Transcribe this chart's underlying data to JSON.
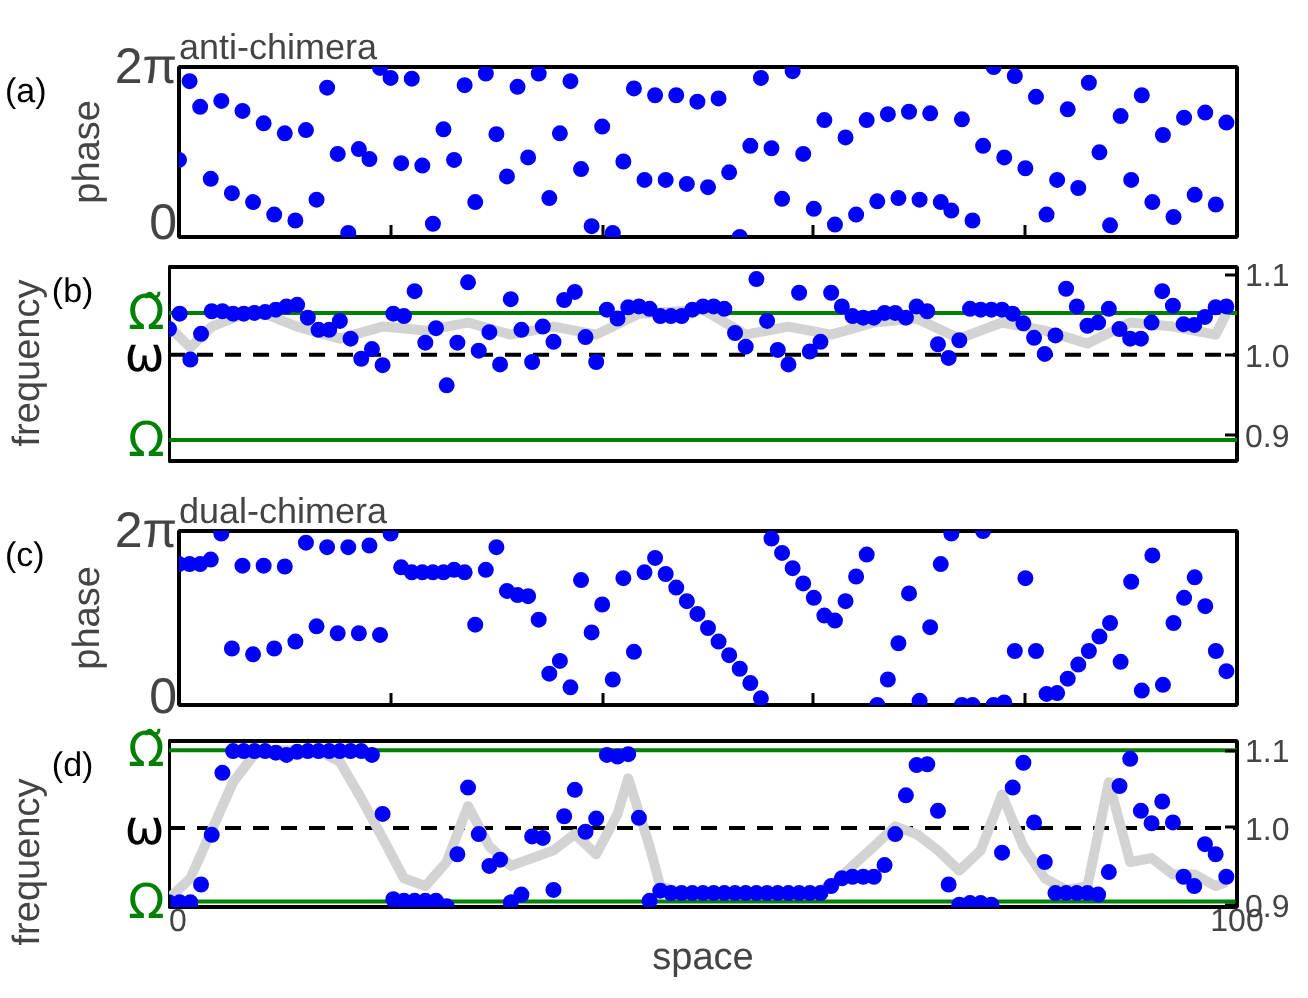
{
  "chart_data": [
    {
      "type": "scatter",
      "title": "anti-chimera",
      "ylabel": "phase",
      "annotations": [
        "(a)"
      ],
      "marker": "circle",
      "tick_labels": "y",
      "xlim": [
        0,
        100
      ],
      "xticks": [
        {
          "value": 0,
          "label": null
        },
        {
          "value": 20,
          "label": null
        },
        {
          "value": 40,
          "label": null
        },
        {
          "value": 60,
          "label": null
        },
        {
          "value": 80,
          "label": null
        },
        {
          "value": 100,
          "label": null
        }
      ],
      "ylim": [
        0,
        6.283
      ],
      "yticks": [
        0,
        {
          "value": 6.283,
          "label": "2π"
        }
      ],
      "x": [
        0,
        1,
        2,
        3,
        4,
        5,
        6,
        7,
        8,
        9,
        10,
        11,
        12,
        13,
        14,
        15,
        16,
        17,
        18,
        19,
        20,
        21,
        22,
        23,
        24,
        25,
        26,
        27,
        28,
        29,
        30,
        31,
        32,
        33,
        34,
        35,
        36,
        37,
        38,
        39,
        40,
        41,
        42,
        43,
        44,
        45,
        46,
        47,
        48,
        49,
        50,
        51,
        52,
        53,
        54,
        55,
        56,
        57,
        58,
        59,
        60,
        61,
        62,
        63,
        64,
        65,
        66,
        67,
        68,
        69,
        70,
        71,
        72,
        73,
        74,
        75,
        76,
        77,
        78,
        79,
        80,
        81,
        82,
        83,
        84,
        85,
        86,
        87,
        88,
        89,
        90,
        91,
        92,
        93,
        94,
        95,
        96,
        97,
        98,
        99
      ],
      "series": [
        {
          "color": "#0000ff",
          "values": [
            2.85,
            5.76,
            4.81,
            2.15,
            5.03,
            1.62,
            4.66,
            1.29,
            4.2,
            0.83,
            3.83,
            0.61,
            3.95,
            1.38,
            5.52,
            3.07,
            0.15,
            3.25,
            2.88,
            6.25,
            5.88,
            2.73,
            5.85,
            2.64,
            0.49,
            3.98,
            2.85,
            5.61,
            1.29,
            6.04,
            3.8,
            2.24,
            5.55,
            2.94,
            6.04,
            1.44,
            3.83,
            5.76,
            2.51,
            0.4,
            4.08,
            0.15,
            2.79,
            5.49,
            2.11,
            5.24,
            2.11,
            5.24,
            1.96,
            5.0,
            1.84,
            5.12,
            2.39,
            0,
            3.37,
            5.88,
            3.28,
            1.41,
            6.13,
            3.07,
            1.04,
            4.32,
            0.46,
            3.68,
            0.83,
            4.32,
            1.32,
            4.54,
            1.44,
            4.63,
            1.38,
            4.57,
            1.29,
            0.98,
            4.35,
            0.61,
            3.37,
            6.28,
            2.94,
            5.95,
            2.54,
            5.18,
            0.83,
            2.11,
            4.72,
            1.81,
            5.7,
            3.13,
            0.43,
            4.47,
            2.11,
            5.24,
            1.29,
            3.77,
            0.74,
            4.41,
            1.56,
            4.6,
            1.2,
            4.23
          ]
        }
      ]
    },
    {
      "type": "scatter",
      "ylabel": "frequency",
      "annotations": [
        "(b)"
      ],
      "marker": "circle",
      "tick_labels": "y",
      "xlim": [
        0,
        100
      ],
      "y2lim": [
        0.868,
        1.109
      ],
      "y2ticks": [
        {
          "value": 0.9,
          "label": "0.9"
        },
        {
          "value": 1.0,
          "label": "1.0"
        },
        {
          "value": 1.1,
          "label": "1.1"
        }
      ],
      "ref_lines": [
        {
          "axis": "y2",
          "value": 1.052,
          "label": "Ω̃",
          "color": "#008000",
          "line_style": "solid"
        },
        {
          "axis": "y2",
          "value": 1.0,
          "label": "ω",
          "color": "#000000",
          "line_style": "dashed"
        },
        {
          "axis": "y2",
          "value": 0.894,
          "label": "Ω",
          "color": "#008000",
          "line_style": "solid"
        }
      ],
      "x": [
        0,
        1,
        2,
        3,
        4,
        5,
        6,
        7,
        8,
        9,
        10,
        11,
        12,
        13,
        14,
        15,
        16,
        17,
        18,
        19,
        20,
        21,
        22,
        23,
        24,
        25,
        26,
        27,
        28,
        29,
        30,
        31,
        32,
        33,
        34,
        35,
        36,
        37,
        38,
        39,
        40,
        41,
        42,
        43,
        44,
        45,
        46,
        47,
        48,
        49,
        50,
        51,
        52,
        53,
        54,
        55,
        56,
        57,
        58,
        59,
        60,
        61,
        62,
        63,
        64,
        65,
        66,
        67,
        68,
        69,
        70,
        71,
        72,
        73,
        74,
        75,
        76,
        77,
        78,
        79,
        80,
        81,
        82,
        83,
        84,
        85,
        86,
        87,
        88,
        89,
        90,
        91,
        92,
        93,
        94,
        95,
        96,
        97,
        98,
        99
      ],
      "series": [
        {
          "type": "line",
          "axis": "y2",
          "marker": "none",
          "color": "#d3d3d3",
          "x": [
            0,
            2,
            4,
            8,
            12,
            16,
            20,
            24,
            28,
            32,
            36,
            40,
            44,
            50,
            54,
            58,
            62,
            66,
            70,
            74,
            78,
            82,
            86,
            90,
            94,
            98,
            99
          ],
          "values": [
            1.035,
            1.009,
            1.035,
            1.056,
            1.035,
            1.02,
            1.035,
            1.03,
            1.04,
            1.025,
            1.035,
            1.025,
            1.051,
            1.056,
            1.025,
            1.035,
            1.025,
            1.04,
            1.045,
            1.02,
            1.04,
            1.03,
            1.014,
            1.04,
            1.035,
            1.025,
            1.051
          ]
        },
        {
          "type": "scatter",
          "axis": "y2",
          "color": "#0000ff",
          "values": [
            1.032,
            1.051,
            0.994,
            1.026,
            1.054,
            1.054,
            1.051,
            1.051,
            1.052,
            1.053,
            1.056,
            1.06,
            1.062,
            1.046,
            1.031,
            1.031,
            1.042,
            1.02,
            0.995,
            1.007,
            0.987,
            1.051,
            1.048,
            1.079,
            1.015,
            1.033,
            0.962,
            1.015,
            1.09,
            1.005,
            1.028,
            0.988,
            1.069,
            1.031,
            0.991,
            1.035,
            1.016,
            1.068,
            1.078,
            1.022,
            0.991,
            1.056,
            1.045,
            1.059,
            1.06,
            1.057,
            1.048,
            1.048,
            1.048,
            1.056,
            1.06,
            1.06,
            1.057,
            1.027,
            1.01,
            1.094,
            1.042,
            1.006,
            0.988,
            1.077,
            1.004,
            1.016,
            1.077,
            1.06,
            1.048,
            1.046,
            1.046,
            1.052,
            1.052,
            1.046,
            1.06,
            1.054,
            1.013,
            0.996,
            1.018,
            1.057,
            1.056,
            1.056,
            1.056,
            1.051,
            1.039,
            1.021,
            1.001,
            1.024,
            1.082,
            1.06,
            1.036,
            1.04,
            1.057,
            1.032,
            1.02,
            1.02,
            1.04,
            1.079,
            1.061,
            1.038,
            1.037,
            1.047,
            1.059,
            1.06
          ]
        }
      ]
    },
    {
      "type": "scatter",
      "title": "dual-chimera",
      "ylabel": "phase",
      "annotations": [
        "(c)"
      ],
      "marker": "circle",
      "tick_labels": "y",
      "xlim": [
        0,
        100
      ],
      "xticks": [
        {
          "value": 0,
          "label": null
        },
        {
          "value": 20,
          "label": null
        },
        {
          "value": 40,
          "label": null
        },
        {
          "value": 60,
          "label": null
        },
        {
          "value": 80,
          "label": null
        },
        {
          "value": 100,
          "label": null
        }
      ],
      "ylim": [
        0,
        6.283
      ],
      "yticks": [
        0,
        {
          "value": 6.283,
          "label": "2π"
        }
      ],
      "x": [
        0,
        1,
        2,
        3,
        4,
        5,
        6,
        7,
        8,
        9,
        10,
        11,
        12,
        13,
        14,
        15,
        16,
        17,
        18,
        19,
        20,
        21,
        22,
        23,
        24,
        25,
        26,
        27,
        28,
        29,
        30,
        31,
        32,
        33,
        34,
        35,
        36,
        37,
        38,
        39,
        40,
        41,
        42,
        43,
        44,
        45,
        46,
        47,
        48,
        49,
        50,
        51,
        52,
        53,
        54,
        55,
        56,
        57,
        58,
        59,
        60,
        61,
        62,
        63,
        64,
        65,
        66,
        67,
        68,
        69,
        70,
        71,
        72,
        73,
        74,
        75,
        76,
        77,
        78,
        79,
        80,
        81,
        82,
        83,
        84,
        85,
        86,
        87,
        88,
        89,
        90,
        91,
        92,
        93,
        94,
        95,
        96,
        97,
        98,
        99
      ],
      "series": [
        {
          "color": "#0000ff",
          "values": [
            5.09,
            5.09,
            5.09,
            5.25,
            6.19,
            2.04,
            5.03,
            1.83,
            5.03,
            2.04,
            5.0,
            2.29,
            5.86,
            2.84,
            5.7,
            2.59,
            5.7,
            2.59,
            5.76,
            2.53,
            6.19,
            4.97,
            4.79,
            4.79,
            4.79,
            4.79,
            4.88,
            4.79,
            2.9,
            4.88,
            5.7,
            4.12,
            3.97,
            3.93,
            3.08,
            1.13,
            1.59,
            0.64,
            4.51,
            2.62,
            3.63,
            0.92,
            4.58,
            1.92,
            4.79,
            5.31,
            4.73,
            4.24,
            3.75,
            3.29,
            2.78,
            2.29,
            1.8,
            1.31,
            0.79,
            0.24,
            6.01,
            5.49,
            4.94,
            4.39,
            3.87,
            3.23,
            3.05,
            3.75,
            4.64,
            5.43,
            0,
            0.92,
            2.23,
            4.03,
            0.15,
            2.81,
            5.09,
            6.19,
            0,
            0,
            6.28,
            0,
            0.09,
            1.95,
            4.58,
            1.95,
            0.4,
            0.43,
            0.95,
            1.46,
            1.95,
            2.47,
            2.96,
            1.56,
            4.45,
            0.52,
            5.4,
            0.73,
            2.96,
            3.87,
            4.61,
            3.57,
            1.95,
            1.22
          ]
        }
      ]
    },
    {
      "type": "scatter",
      "ylabel": "frequency",
      "xlabel": "space",
      "annotations": [
        "(d)"
      ],
      "marker": "circle",
      "xlim": [
        0,
        100
      ],
      "xticks": [
        0,
        100
      ],
      "y2lim": [
        0.898,
        1.112
      ],
      "y2ticks": [
        {
          "value": 0.9,
          "label": "0.9"
        },
        {
          "value": 1.0,
          "label": "1.0"
        },
        {
          "value": 1.1,
          "label": "1.1"
        }
      ],
      "ref_lines": [
        {
          "axis": "y2",
          "value": 1.1,
          "label": "Ω̃",
          "color": "#008000",
          "line_style": "solid"
        },
        {
          "axis": "y2",
          "value": 1.0,
          "label": "ω",
          "color": "#000000",
          "line_style": "dashed"
        },
        {
          "axis": "y2",
          "value": 0.905,
          "label": "Ω",
          "color": "#008000",
          "line_style": "solid"
        }
      ],
      "x": [
        0,
        1,
        2,
        3,
        4,
        5,
        6,
        7,
        8,
        9,
        10,
        11,
        12,
        13,
        14,
        15,
        16,
        17,
        18,
        19,
        20,
        21,
        22,
        23,
        24,
        25,
        26,
        27,
        28,
        29,
        30,
        31,
        32,
        33,
        34,
        35,
        36,
        37,
        38,
        39,
        40,
        41,
        42,
        43,
        44,
        45,
        46,
        47,
        48,
        49,
        50,
        51,
        52,
        53,
        54,
        55,
        56,
        57,
        58,
        59,
        60,
        61,
        62,
        63,
        64,
        65,
        66,
        67,
        68,
        69,
        70,
        71,
        72,
        73,
        74,
        75,
        76,
        77,
        78,
        79,
        80,
        81,
        82,
        83,
        84,
        85,
        86,
        87,
        88,
        89,
        90,
        91,
        92,
        93,
        94,
        95,
        96,
        97,
        98,
        99
      ],
      "series": [
        {
          "type": "line",
          "axis": "y2",
          "marker": "none",
          "color": "#d3d3d3",
          "x": [
            0,
            2,
            4,
            6,
            8,
            10,
            12,
            14,
            16,
            18,
            20,
            22,
            24,
            26,
            28,
            30,
            32,
            34,
            36,
            38,
            40,
            42,
            43,
            45,
            46,
            48,
            52,
            56,
            60,
            62,
            64,
            66,
            68,
            70,
            72,
            74,
            76,
            78,
            80,
            82,
            84,
            86,
            88,
            90,
            92,
            94,
            96,
            98,
            99
          ],
          "values": [
            0.909,
            0.935,
            0.997,
            1.059,
            1.095,
            1.1,
            1.1,
            1.1,
            1.085,
            1.038,
            0.987,
            0.935,
            0.925,
            0.956,
            1.028,
            0.976,
            0.951,
            0.961,
            0.971,
            0.992,
            0.966,
            1.018,
            1.064,
            0.976,
            0.925,
            0.916,
            0.916,
            0.916,
            0.916,
            0.925,
            0.951,
            0.976,
            1.002,
            0.992,
            0.971,
            0.945,
            0.971,
            1.043,
            0.976,
            0.935,
            0.92,
            0.925,
            1.059,
            0.956,
            0.961,
            0.94,
            0.94,
            0.925,
            0.93
          ]
        },
        {
          "type": "scatter",
          "axis": "y2",
          "color": "#0000ff",
          "values": [
            0.904,
            0.904,
            0.904,
            0.927,
            0.991,
            1.071,
            1.099,
            1.099,
            1.099,
            1.099,
            1.097,
            1.094,
            1.098,
            1.099,
            1.099,
            1.099,
            1.099,
            1.099,
            1.099,
            1.094,
            1.018,
            0.908,
            0.906,
            0.906,
            0.906,
            0.906,
            0.899,
            0.966,
            1.052,
            0.992,
            0.951,
            0.959,
            0.904,
            0.914,
            0.989,
            0.987,
            0.92,
            1.015,
            1.049,
            0.995,
            1.012,
            1.094,
            1.092,
            1.095,
            1.013,
            0.906,
            0.919,
            0.916,
            0.916,
            0.916,
            0.916,
            0.916,
            0.916,
            0.916,
            0.916,
            0.916,
            0.916,
            0.916,
            0.916,
            0.916,
            0.916,
            0.916,
            0.925,
            0.935,
            0.937,
            0.937,
            0.937,
            0.952,
            0.992,
            1.042,
            1.081,
            1.082,
            1.022,
            0.927,
            0.901,
            0.903,
            0.903,
            0.901,
            0.968,
            1.052,
            1.084,
            1.007,
            0.956,
            0.916,
            0.916,
            0.916,
            0.916,
            0.914,
            0.943,
            1.054,
            1.089,
            1.022,
            1.006,
            1.034,
            1.007,
            0.937,
            0.925,
            0.979,
            0.966,
            0.937
          ]
        }
      ]
    }
  ]
}
